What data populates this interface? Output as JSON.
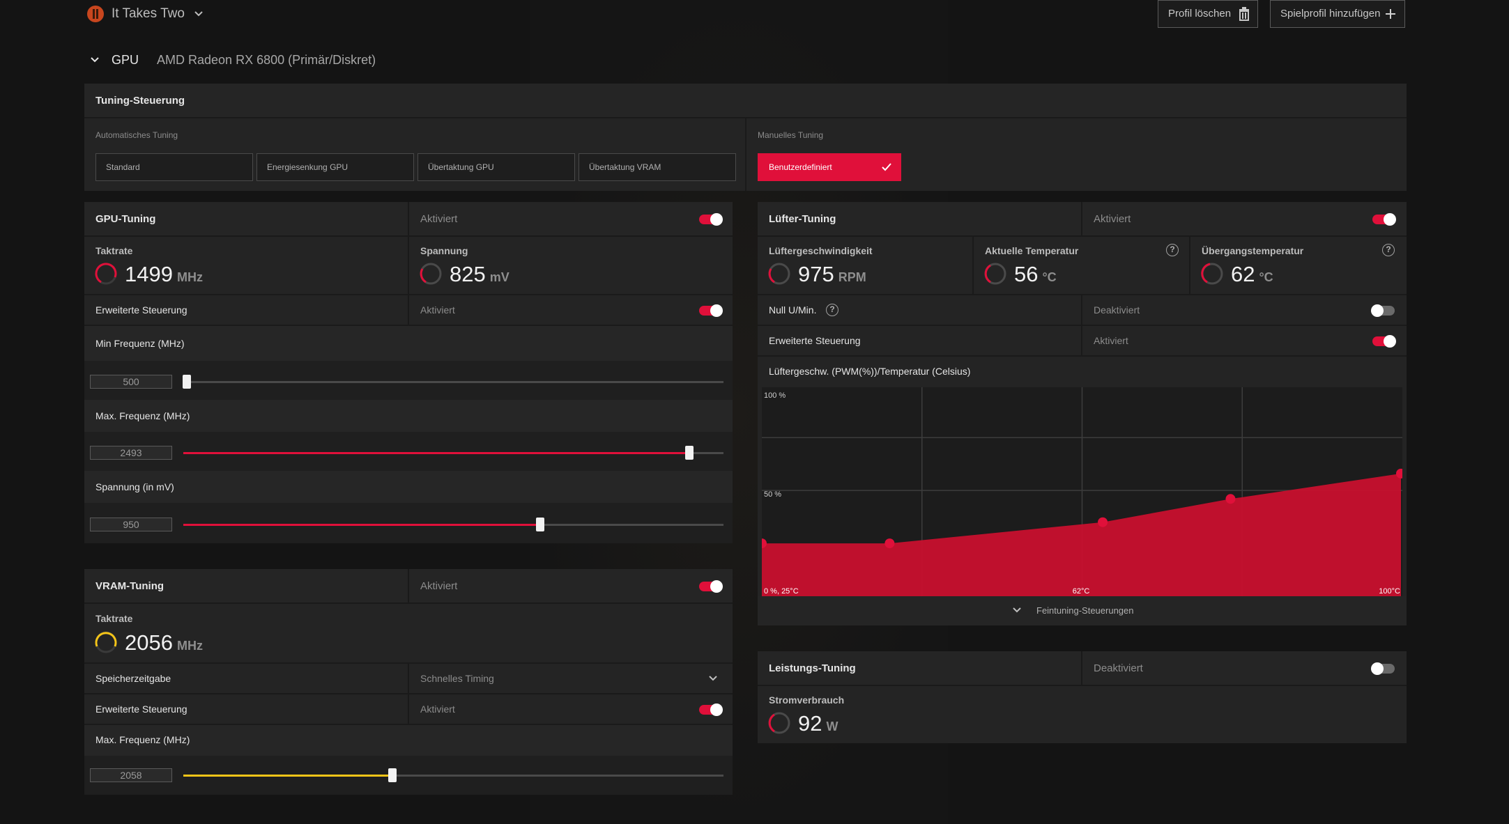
{
  "header": {
    "game_title": "It Takes Two",
    "delete_profile_label": "Profil löschen",
    "add_profile_label": "Spielprofil hinzufügen"
  },
  "gpu_bar": {
    "label": "GPU",
    "device": "AMD Radeon RX 6800 (Primär/Diskret)"
  },
  "tuning_control": {
    "title": "Tuning-Steuerung",
    "auto_label": "Automatisches Tuning",
    "auto_options": [
      "Standard",
      "Energiesenkung GPU",
      "Übertaktung GPU",
      "Übertaktung VRAM"
    ],
    "manual_label": "Manuelles Tuning",
    "manual_option": "Benutzerdefiniert"
  },
  "gpu_tuning": {
    "title": "GPU-Tuning",
    "status": "Aktiviert",
    "enabled": true,
    "clock_label": "Taktrate",
    "clock_value": "1499",
    "clock_unit": "MHz",
    "voltage_label": "Spannung",
    "voltage_value": "825",
    "voltage_unit": "mV",
    "advanced_label": "Erweiterte Steuerung",
    "advanced_status": "Aktiviert",
    "min_freq_label": "Min Frequenz (MHz)",
    "min_freq_value": "500",
    "max_freq_label": "Max. Frequenz (MHz)",
    "max_freq_value": "2493",
    "voltage_mv_label": "Spannung (in mV)",
    "voltage_mv_value": "950"
  },
  "vram_tuning": {
    "title": "VRAM-Tuning",
    "status": "Aktiviert",
    "clock_label": "Taktrate",
    "clock_value": "2056",
    "clock_unit": "MHz",
    "memory_timing_label": "Speicherzeitgabe",
    "memory_timing_value": "Schnelles Timing",
    "advanced_label": "Erweiterte Steuerung",
    "advanced_status": "Aktiviert",
    "max_freq_label": "Max. Frequenz (MHz)",
    "max_freq_value": "2058"
  },
  "fan_tuning": {
    "title": "Lüfter-Tuning",
    "status": "Aktiviert",
    "fan_speed_label": "Lüftergeschwindigkeit",
    "fan_speed_value": "975",
    "fan_speed_unit": "RPM",
    "current_temp_label": "Aktuelle Temperatur",
    "current_temp_value": "56",
    "current_temp_unit": "°C",
    "junction_temp_label": "Übergangstemperatur",
    "junction_temp_value": "62",
    "junction_temp_unit": "°C",
    "zero_rpm_label": "Null U/Min.",
    "zero_rpm_status": "Deaktiviert",
    "advanced_label": "Erweiterte Steuerung",
    "advanced_status": "Aktiviert",
    "curve_title": "Lüftergeschw. (PWM(%))/Temperatur (Celsius)",
    "fine_tuning_label": "Feintuning-Steuerungen"
  },
  "chart_data": {
    "type": "area",
    "title": "Lüftergeschw. (PWM(%))/Temperatur (Celsius)",
    "y_tick_labels": [
      "100 %",
      "50 %"
    ],
    "x_tick_labels": [
      "0 %, 25°C",
      "62°C",
      "100°C"
    ],
    "xlim": [
      25,
      100
    ],
    "ylim": [
      0,
      100
    ],
    "x": [
      25,
      40,
      65,
      80,
      100
    ],
    "values": [
      25,
      25,
      35,
      46,
      58
    ],
    "color": "#c8102e"
  },
  "power_tuning": {
    "title": "Leistungs-Tuning",
    "status": "Deaktiviert",
    "power_label": "Stromverbrauch",
    "power_value": "92",
    "power_unit": "W"
  },
  "colors": {
    "accent": "#e0103a",
    "vram_accent": "#f5c518"
  }
}
